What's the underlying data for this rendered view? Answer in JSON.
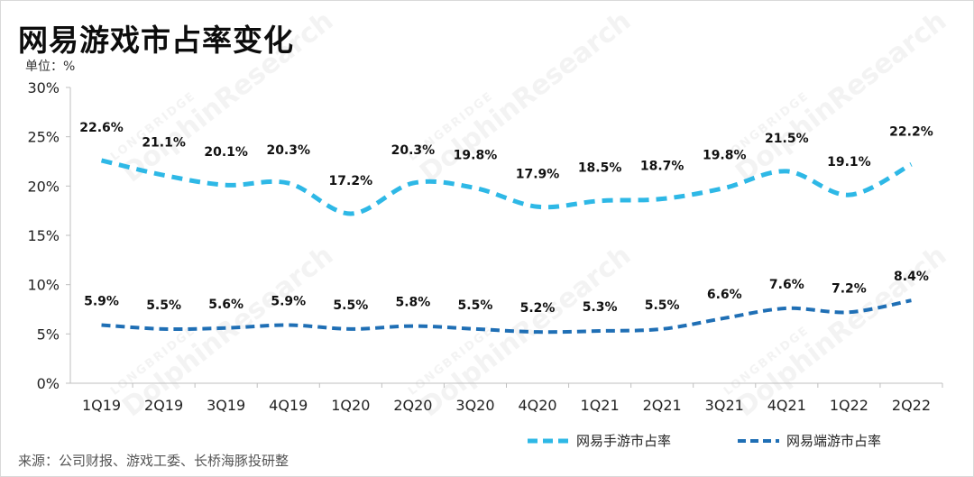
{
  "title": "网易游戏市占率变化",
  "unit": "单位：%",
  "source": "来源：公司财报、游戏工委、长桥海豚投研整",
  "watermark": {
    "brand": "LONGBRIDGE",
    "name": "DolphinResearch"
  },
  "colors": {
    "mobile": "#2eb8e6",
    "pc": "#1f6fb5",
    "axis": "#bfbfbf"
  },
  "chart_data": {
    "type": "line",
    "title": "网易游戏市占率变化",
    "ylabel": "单位：%",
    "xlabel": "",
    "ylim": [
      0,
      30
    ],
    "yticks": [
      0,
      5,
      10,
      15,
      20,
      25,
      30
    ],
    "ytick_labels": [
      "0%",
      "5%",
      "10%",
      "15%",
      "20%",
      "25%",
      "30%"
    ],
    "grid": false,
    "legend_position": "bottom-right",
    "categories": [
      "1Q19",
      "2Q19",
      "3Q19",
      "4Q19",
      "1Q20",
      "2Q20",
      "3Q20",
      "4Q20",
      "1Q21",
      "2Q21",
      "3Q21",
      "4Q21",
      "1Q22",
      "2Q22"
    ],
    "series": [
      {
        "name": "网易手游市占率",
        "style": "dashed",
        "values": [
          22.6,
          21.1,
          20.1,
          20.3,
          17.2,
          20.3,
          19.8,
          17.9,
          18.5,
          18.7,
          19.8,
          21.5,
          19.1,
          22.2
        ],
        "labels": [
          "22.6%",
          "21.1%",
          "20.1%",
          "20.3%",
          "17.2%",
          "20.3%",
          "19.8%",
          "17.9%",
          "18.5%",
          "18.7%",
          "19.8%",
          "21.5%",
          "19.1%",
          "22.2%"
        ]
      },
      {
        "name": "网易端游市占率",
        "style": "dashed",
        "values": [
          5.9,
          5.5,
          5.6,
          5.9,
          5.5,
          5.8,
          5.5,
          5.2,
          5.3,
          5.5,
          6.6,
          7.6,
          7.2,
          8.4
        ],
        "labels": [
          "5.9%",
          "5.5%",
          "5.6%",
          "5.9%",
          "5.5%",
          "5.8%",
          "5.5%",
          "5.2%",
          "5.3%",
          "5.5%",
          "6.6%",
          "7.6%",
          "7.2%",
          "8.4%"
        ]
      }
    ]
  }
}
